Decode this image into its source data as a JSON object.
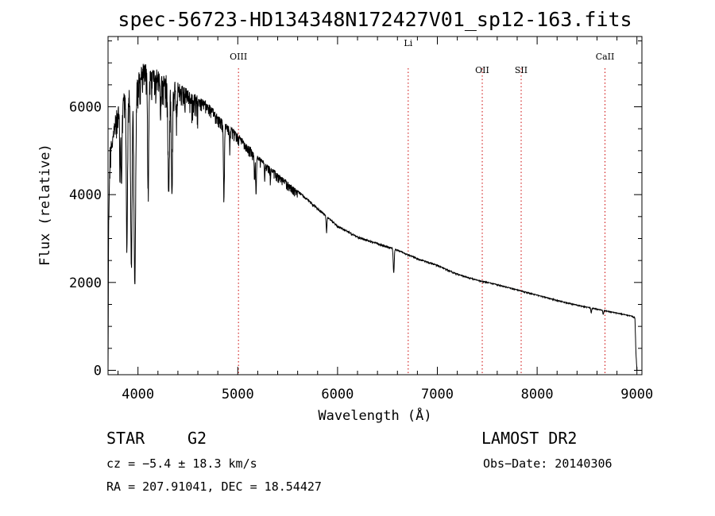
{
  "chart_data": {
    "type": "line",
    "title": "spec-56723-HD134348N172427V01_sp12-163.fits",
    "xlabel": "Wavelength (Å)",
    "ylabel": "Flux (relative)",
    "xlim": [
      3700,
      9050
    ],
    "ylim": [
      -100,
      7600
    ],
    "xticks": [
      4000,
      5000,
      6000,
      7000,
      8000,
      9000
    ],
    "yticks": [
      0,
      2000,
      4000,
      6000
    ],
    "grid": false,
    "legend": "none",
    "colors": {
      "spectrum": "#000000",
      "line_markers": "#cc0000"
    },
    "lines": [
      {
        "label": "OIII",
        "x": 5007
      },
      {
        "label": "Li",
        "x": 6708
      },
      {
        "label": "OII",
        "x": 7450
      },
      {
        "label": "SII",
        "x": 7840
      },
      {
        "label": "CaII",
        "x": 8680
      }
    ],
    "continuum": [
      [
        3700,
        0
      ],
      [
        3705,
        3400
      ],
      [
        3720,
        5100
      ],
      [
        3780,
        5900
      ],
      [
        3850,
        6300
      ],
      [
        3950,
        6500
      ],
      [
        4050,
        7000
      ],
      [
        4150,
        6900
      ],
      [
        4300,
        6700
      ],
      [
        4500,
        6400
      ],
      [
        4700,
        6100
      ],
      [
        4850,
        5700
      ],
      [
        5000,
        5400
      ],
      [
        5200,
        4900
      ],
      [
        5400,
        4500
      ],
      [
        5600,
        4100
      ],
      [
        5800,
        3700
      ],
      [
        6000,
        3300
      ],
      [
        6200,
        3050
      ],
      [
        6400,
        2900
      ],
      [
        6600,
        2750
      ],
      [
        6800,
        2550
      ],
      [
        7000,
        2400
      ],
      [
        7200,
        2200
      ],
      [
        7400,
        2060
      ],
      [
        7600,
        1960
      ],
      [
        7800,
        1840
      ],
      [
        8000,
        1720
      ],
      [
        8200,
        1600
      ],
      [
        8400,
        1490
      ],
      [
        8600,
        1400
      ],
      [
        8800,
        1310
      ],
      [
        8950,
        1240
      ],
      [
        8980,
        1200
      ],
      [
        8990,
        400
      ],
      [
        9000,
        0
      ]
    ],
    "absorption": [
      [
        3820,
        0.25,
        4
      ],
      [
        3835,
        0.3,
        5
      ],
      [
        3889,
        0.55,
        6
      ],
      [
        3934,
        0.62,
        7
      ],
      [
        3968,
        0.7,
        8
      ],
      [
        4102,
        0.4,
        6
      ],
      [
        4226,
        0.15,
        3
      ],
      [
        4308,
        0.35,
        7
      ],
      [
        4340,
        0.38,
        6
      ],
      [
        4384,
        0.1,
        3
      ],
      [
        4861,
        0.3,
        5
      ],
      [
        4920,
        0.08,
        3
      ],
      [
        5169,
        0.12,
        4
      ],
      [
        5183,
        0.18,
        4
      ],
      [
        5270,
        0.08,
        3
      ],
      [
        5328,
        0.06,
        3
      ],
      [
        5890,
        0.1,
        4
      ],
      [
        6563,
        0.2,
        5
      ],
      [
        8542,
        0.08,
        4
      ],
      [
        8662,
        0.07,
        4
      ]
    ]
  },
  "footer": {
    "object_type": "STAR",
    "subclass": "G2",
    "survey": "LAMOST DR2",
    "cz": "cz = −5.4 ± 18.3 km/s",
    "obs_date": "Obs−Date: 20140306",
    "coords": "RA = 207.91041, DEC =  18.54427"
  }
}
